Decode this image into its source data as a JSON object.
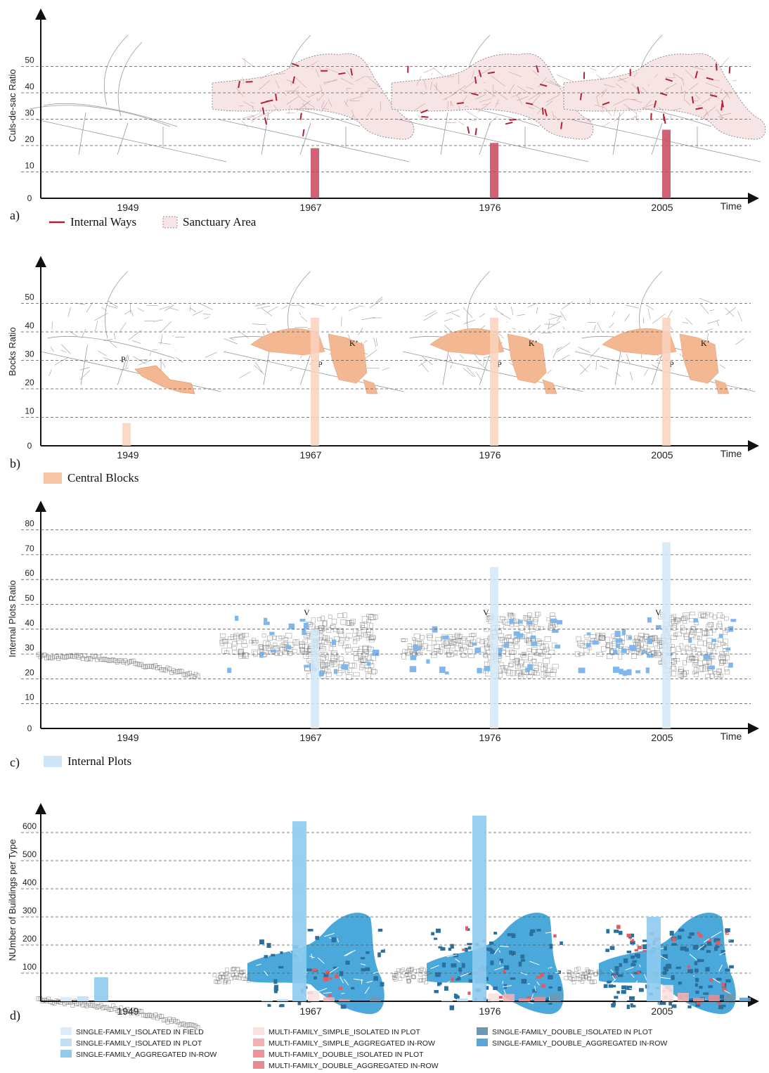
{
  "chart_data": [
    {
      "type": "bar",
      "panel_label": "a)",
      "ylabel": "Culs-de-sac Ratio",
      "xlabel": "Time",
      "ylim": [
        0,
        60
      ],
      "y_ticks": [
        "0",
        "10",
        "20",
        "30",
        "40",
        "50"
      ],
      "categories": [
        "1949",
        "1967",
        "1976",
        "2005"
      ],
      "values": [
        0,
        19,
        21,
        26
      ],
      "grid": "horizontal dashed",
      "legend": [
        {
          "label": "Internal Ways",
          "color": "#b51f35"
        },
        {
          "label": "Sanctuary Area",
          "color": "#f7e4e4"
        }
      ],
      "bar_color": "#c9475b"
    },
    {
      "type": "bar",
      "panel_label": "b)",
      "ylabel": "Bocks Ratio",
      "xlabel": "Time",
      "ylim": [
        0,
        60
      ],
      "y_ticks": [
        "0",
        "10",
        "20",
        "30",
        "40",
        "50"
      ],
      "categories": [
        "1949",
        "1967",
        "1976",
        "2005"
      ],
      "values": [
        8,
        45,
        45,
        45
      ],
      "grid": "horizontal dashed",
      "legend": [
        {
          "label": "Central Blocks",
          "color": "#f7c4a8"
        }
      ],
      "map_labels": [
        "P",
        "K’"
      ],
      "bar_color": "#f9d2bd"
    },
    {
      "type": "bar",
      "panel_label": "c)",
      "ylabel": "Internal Plots Ratio",
      "xlabel": "Time",
      "ylim": [
        0,
        90
      ],
      "y_ticks": [
        "0",
        "10",
        "20",
        "30",
        "40",
        "50",
        "60",
        "70",
        "80"
      ],
      "categories": [
        "1949",
        "1967",
        "1976",
        "2005"
      ],
      "values": [
        0,
        40,
        65,
        75
      ],
      "grid": "horizontal dashed",
      "legend": [
        {
          "label": "Internal Plots",
          "color": "#cfe5f6"
        }
      ],
      "map_labels": [
        "V"
      ],
      "bar_color": "#d4e7f7"
    },
    {
      "type": "bar",
      "panel_label": "d)",
      "ylabel": "NUmber of Buildings per Type",
      "ylim": [
        0,
        680
      ],
      "y_ticks": [
        "100",
        "200",
        "300",
        "400",
        "500",
        "600"
      ],
      "categories": [
        "1949",
        "1967",
        "1976",
        "2005"
      ],
      "series": [
        {
          "name": "SINGLE-FAMILY_ISOLATED IN FIELD",
          "color": "#dcedfa",
          "values": [
            15,
            5,
            5,
            5
          ]
        },
        {
          "name": "SINGLE-FAMILY_ISOLATED IN PLOT",
          "color": "#bfe0f5",
          "values": [
            18,
            8,
            10,
            0
          ]
        },
        {
          "name": "SINGLE-FAMILY_AGGREGATED IN-ROW",
          "color": "#8ecbef",
          "values": [
            85,
            640,
            660,
            300
          ]
        },
        {
          "name": "MULTI-FAMILY_SIMPLE_ISOLATED IN PLOT",
          "color": "#fbe1e1",
          "values": [
            0,
            38,
            28,
            58
          ]
        },
        {
          "name": "MULTI-FAMILY_SIMPLE_AGGREGATED IN-ROW",
          "color": "#f5b0b3",
          "values": [
            0,
            14,
            26,
            30
          ]
        },
        {
          "name": "MULTI-FAMILY_DOUBLE_ISOLATED IN PLOT",
          "color": "#ef9196",
          "values": [
            0,
            8,
            10,
            12
          ]
        },
        {
          "name": "MULTI-FAMILY_DOUBLE_AGGREGATED IN-ROW",
          "color": "#e78a92",
          "values": [
            0,
            0,
            16,
            23
          ]
        },
        {
          "name": "SINGLE-FAMILY_DOUBLE_ISOLATED IN PLOT",
          "color": "#6f97b3",
          "values": [
            0,
            15,
            26,
            27
          ]
        },
        {
          "name": "SINGLE-FAMILY_DOUBLE_AGGREGATED IN-ROW",
          "color": "#5aa4d8",
          "values": [
            0,
            0,
            0,
            13
          ]
        }
      ],
      "grid": "horizontal dashed",
      "legend_placement": "bottom"
    }
  ],
  "colors": {
    "axis": "#111111",
    "grid": "#555555",
    "street": "#9a9a9a",
    "sanctuary_fill": "#f7e4e4",
    "internal_way": "#b51f35",
    "central_block": "#f3b892",
    "plot_outline": "#777777",
    "internal_plot": "#7fb6ec",
    "building_main": "#4aa8db",
    "building_dark": "#2b6f9c"
  },
  "icons": [
    "map-1949-icon",
    "map-1967-icon",
    "map-1976-icon",
    "map-2005-icon"
  ]
}
